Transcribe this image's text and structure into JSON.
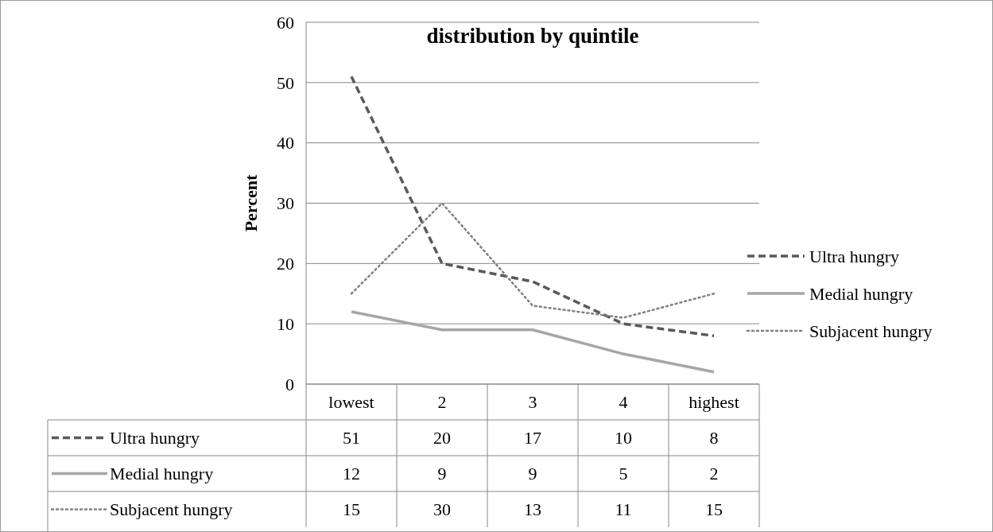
{
  "chart_data": {
    "type": "line",
    "title": "distribution by quintile",
    "ylabel": "Percent",
    "categories": [
      "lowest",
      "2",
      "3",
      "4",
      "highest"
    ],
    "series": [
      {
        "name": "Ultra hungry",
        "color": "#595959",
        "line_style": "dashed",
        "values": [
          51,
          20,
          17,
          10,
          8
        ]
      },
      {
        "name": "Medial hungry",
        "color": "#a6a6a6",
        "line_style": "solid",
        "values": [
          12,
          9,
          9,
          5,
          2
        ]
      },
      {
        "name": "Subjacent hungry",
        "color": "#808080",
        "line_style": "dotted",
        "values": [
          15,
          30,
          13,
          11,
          15
        ]
      }
    ],
    "ylim": [
      0,
      60
    ],
    "yticks": [
      0,
      10,
      20,
      30,
      40,
      50,
      60
    ],
    "grid": "y",
    "legend": "right",
    "data_labels": true,
    "marker": "none"
  }
}
